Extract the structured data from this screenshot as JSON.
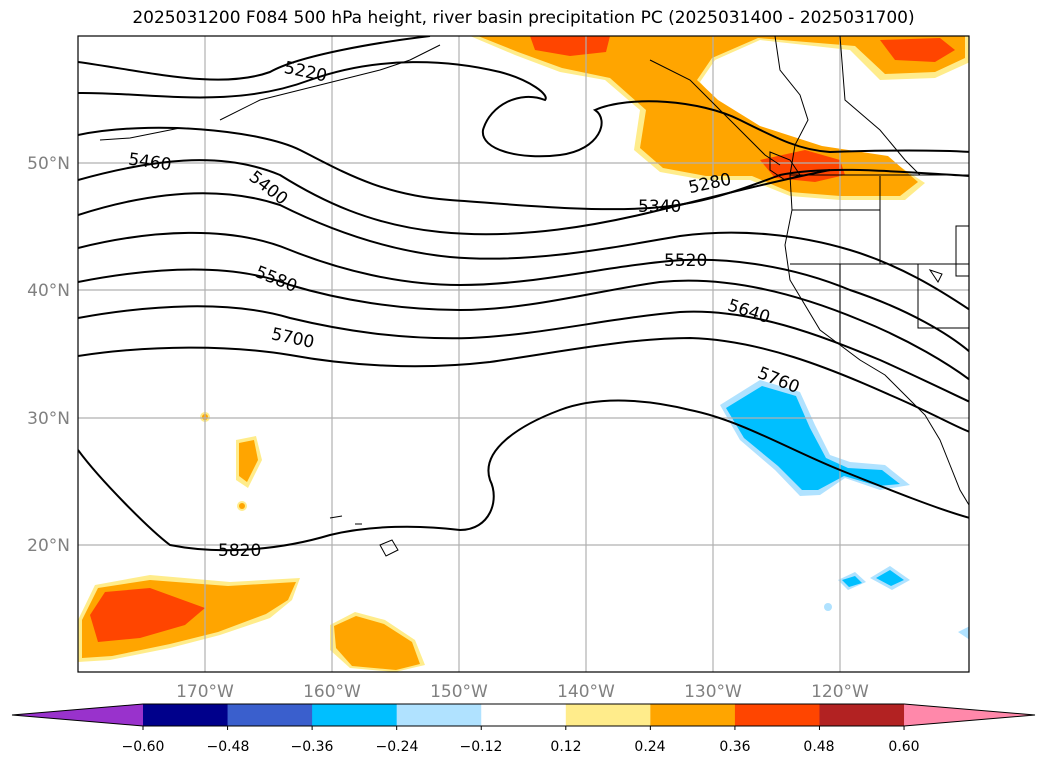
{
  "title": "2025031200 F084 500 hPa height, river basin precipitation PC (2025031400 - 2025031700)",
  "map": {
    "lat_labels": [
      "50°N",
      "40°N",
      "30°N",
      "20°N"
    ],
    "lon_labels": [
      "170°W",
      "160°W",
      "150°W",
      "140°W",
      "130°W",
      "120°W"
    ],
    "tick_label_color": "#808080",
    "grid": true
  },
  "contour_labels": [
    "5220",
    "5280",
    "5340",
    "5400",
    "5460",
    "5520",
    "5580",
    "5640",
    "5700",
    "5760",
    "5820"
  ],
  "colorbar": {
    "ticks": [
      "−0.60",
      "−0.48",
      "−0.36",
      "−0.24",
      "−0.12",
      "0.12",
      "0.24",
      "0.36",
      "0.48",
      "0.60"
    ],
    "colors": [
      "#9932cc",
      "#00008b",
      "#3a5fcd",
      "#00bfff",
      "#b0e2ff",
      "#ffffff",
      "#ffec8b",
      "#ffa500",
      "#ff4500",
      "#b22222",
      "#ff88aa"
    ]
  }
}
